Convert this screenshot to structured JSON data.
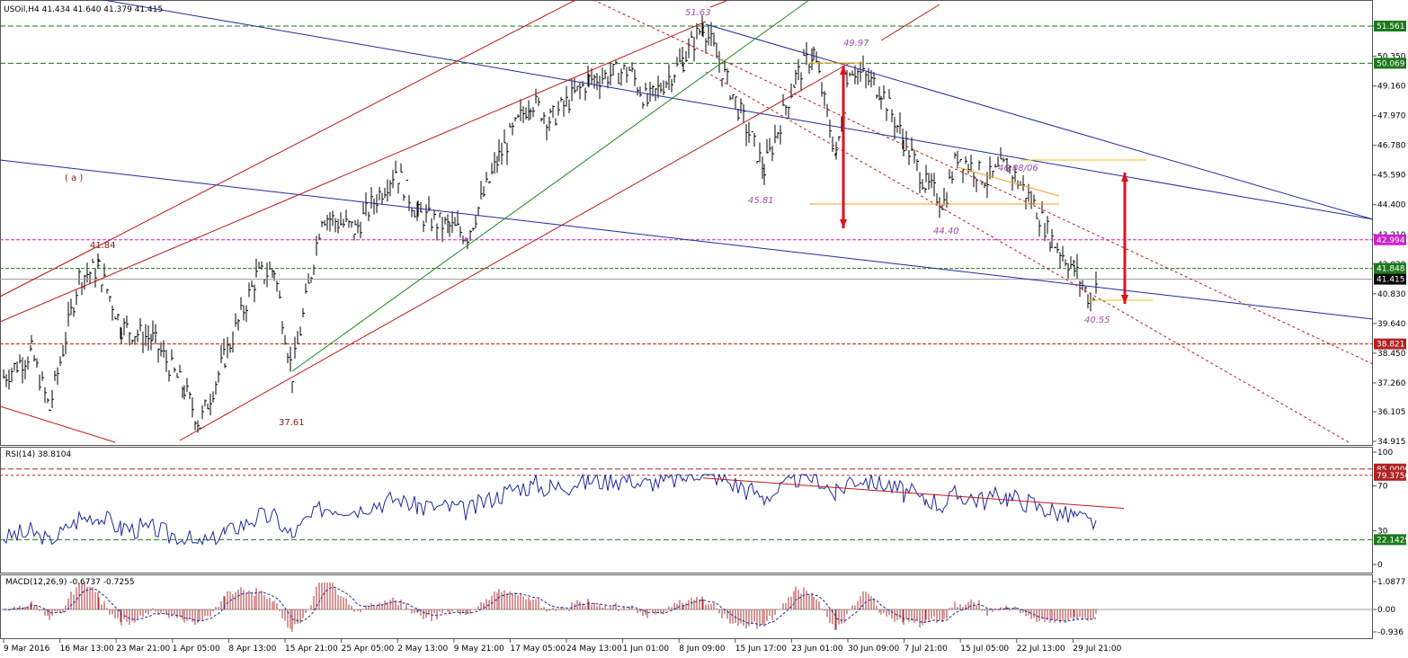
{
  "main": {
    "title": "USOil,H4  41.434 41.640 41.379 41.415",
    "ylim": [
      34.915,
      52.4
    ],
    "y_ticks": [
      "51.561",
      "50.350",
      "49.160",
      "47.970",
      "46.780",
      "45.590",
      "44.400",
      "43.210",
      "42.020",
      "40.830",
      "39.640",
      "38.450",
      "37.260",
      "36.105",
      "34.915"
    ],
    "y_tick_values": [
      51.561,
      50.35,
      49.16,
      47.97,
      46.78,
      45.59,
      44.4,
      43.21,
      42.02,
      40.83,
      39.64,
      38.45,
      37.26,
      36.105,
      34.915
    ],
    "price_labels": [
      {
        "text": "51.561",
        "value": 51.561,
        "color": "#1a7a1a"
      },
      {
        "text": "50.069",
        "value": 50.069,
        "color": "#1a7a1a"
      },
      {
        "text": "42.994",
        "value": 42.994,
        "color": "#d020d0"
      },
      {
        "text": "41.848",
        "value": 41.848,
        "color": "#1a7a1a"
      },
      {
        "text": "41.415",
        "value": 41.415,
        "color": "#000000"
      },
      {
        "text": "38.821",
        "value": 38.821,
        "color": "#b22222"
      }
    ],
    "annotations": [
      {
        "text": "51.63",
        "color": "#9b4db0"
      },
      {
        "text": "49.97",
        "color": "#9b4db0"
      },
      {
        "text": "46.08/06",
        "color": "#9b4db0"
      },
      {
        "text": "45.81",
        "color": "#9b4db0"
      },
      {
        "text": "44.40",
        "color": "#9b4db0"
      },
      {
        "text": "40.55",
        "color": "#9b4db0"
      },
      {
        "text": "41.84",
        "color": "#8b1a1a"
      },
      {
        "text": "37.61",
        "color": "#8b1a1a"
      },
      {
        "text": "( a )",
        "color": "#8b1a1a"
      }
    ]
  },
  "rsi": {
    "title": "RSI(14) 38.8104",
    "ylim": [
      0,
      100
    ],
    "y_ticks": [
      "100",
      "70",
      "30",
      "0"
    ],
    "y_tick_values": [
      100,
      70,
      30,
      0
    ],
    "price_labels": [
      {
        "text": "85.0000",
        "value": 85,
        "color": "#b22222"
      },
      {
        "text": "79.3750",
        "value": 79.375,
        "color": "#b22222"
      },
      {
        "text": "22.1429",
        "value": 22.1429,
        "color": "#1a7a1a"
      }
    ]
  },
  "macd": {
    "title": "MACD(12,26,9) -0.6737 -0.7255",
    "ylim": [
      -1.1,
      1.25
    ],
    "y_ticks": [
      "1.0877",
      "0.00",
      "-0.936"
    ],
    "y_tick_values": [
      1.0877,
      0,
      -0.936
    ]
  },
  "x_labels": [
    "9 Mar 2016",
    "16 Mar 13:00",
    "23 Mar 21:00",
    "1 Apr 05:00",
    "8 Apr 13:00",
    "15 Apr 21:00",
    "25 Apr 05:00",
    "2 May 13:00",
    "9 May 21:00",
    "17 May 05:00",
    "24 May 13:00",
    "1 Jun 01:00",
    "8 Jun 09:00",
    "15 Jun 17:00",
    "23 Jun 01:00",
    "30 Jun 09:00",
    "7 Jul 21:00",
    "15 Jul 05:00",
    "22 Jul 13:00",
    "29 Jul 21:00"
  ],
  "chart_data": {
    "type": "line",
    "title": "USOil,H4  41.434 41.640 41.379 41.415",
    "series": [
      {
        "name": "USOil",
        "values": [
          {
            "x": "9 Mar 2016",
            "y": 37.5
          },
          {
            "x": "14 Mar 2016",
            "y": 38.5
          },
          {
            "x": "16 Mar 2016",
            "y": 36.2
          },
          {
            "x": "18 Mar 2016",
            "y": 41.5
          },
          {
            "x": "21 Mar 2016",
            "y": 41.84
          },
          {
            "x": "23 Mar 2016",
            "y": 39.5
          },
          {
            "x": "28 Mar 2016",
            "y": 39.0
          },
          {
            "x": "31 Mar 2016",
            "y": 37.0
          },
          {
            "x": "5 Apr 2016",
            "y": 35.6
          },
          {
            "x": "8 Apr 2016",
            "y": 38.3
          },
          {
            "x": "12 Apr 2016",
            "y": 41.5
          },
          {
            "x": "14 Apr 2016",
            "y": 41.8
          },
          {
            "x": "18 Apr 2016",
            "y": 37.61
          },
          {
            "x": "21 Apr 2016",
            "y": 44.0
          },
          {
            "x": "25 Apr 2016",
            "y": 43.4
          },
          {
            "x": "28 Apr 2016",
            "y": 45.8
          },
          {
            "x": "2 May 2016",
            "y": 44.0
          },
          {
            "x": "5 May 2016",
            "y": 43.5
          },
          {
            "x": "9 May 2016",
            "y": 43.2
          },
          {
            "x": "12 May 2016",
            "y": 46.3
          },
          {
            "x": "17 May 2016",
            "y": 48.6
          },
          {
            "x": "20 May 2016",
            "y": 47.8
          },
          {
            "x": "24 May 2016",
            "y": 49.4
          },
          {
            "x": "27 May 2016",
            "y": 49.8
          },
          {
            "x": "1 Jun 2016",
            "y": 48.5
          },
          {
            "x": "6 Jun 2016",
            "y": 50.2
          },
          {
            "x": "9 Jun 2016",
            "y": 51.63
          },
          {
            "x": "13 Jun 2016",
            "y": 48.8
          },
          {
            "x": "16 Jun 2016",
            "y": 45.81
          },
          {
            "x": "20 Jun 2016",
            "y": 49.5
          },
          {
            "x": "22 Jun 2016",
            "y": 50.5
          },
          {
            "x": "24 Jun 2016",
            "y": 46.3
          },
          {
            "x": "27 Jun 2016",
            "y": 49.97
          },
          {
            "x": "30 Jun 2016",
            "y": 49.0
          },
          {
            "x": "5 Jul 2016",
            "y": 47.0
          },
          {
            "x": "7 Jul 2016",
            "y": 45.2
          },
          {
            "x": "11 Jul 2016",
            "y": 44.5
          },
          {
            "x": "13 Jul 2016",
            "y": 46.4
          },
          {
            "x": "15 Jul 2016",
            "y": 45.4
          },
          {
            "x": "19 Jul 2016",
            "y": 46.0
          },
          {
            "x": "21 Jul 2016",
            "y": 44.4
          },
          {
            "x": "25 Jul 2016",
            "y": 43.0
          },
          {
            "x": "27 Jul 2016",
            "y": 41.8
          },
          {
            "x": "28 Jul 2016",
            "y": 40.55
          },
          {
            "x": "29 Jul 2016",
            "y": 41.415
          }
        ]
      }
    ],
    "rsi": {
      "last": 38.8104,
      "levels": [
        85,
        79.375,
        30,
        22.1429
      ],
      "ylim": [
        0,
        100
      ]
    },
    "macd": {
      "main": -0.6737,
      "signal": -0.7255,
      "ylim": [
        -0.936,
        1.0877
      ]
    },
    "y_axis_side": "right",
    "grid": false
  }
}
